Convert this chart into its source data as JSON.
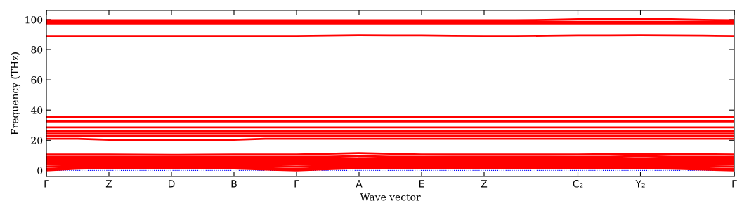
{
  "chart_data": {
    "type": "line",
    "xlabel": "Wave vector",
    "ylabel": "Frequency (THz)",
    "categories": [
      "Γ",
      null,
      "Z",
      null,
      "D",
      null,
      "B",
      null,
      "Γ",
      null,
      "A",
      null,
      "E",
      null,
      "Z",
      null,
      null,
      "C₂",
      null,
      "Y₂",
      null,
      null,
      "Γ"
    ],
    "ylim": [
      -4,
      106
    ],
    "yticks": [
      0,
      20,
      40,
      60,
      80,
      100
    ],
    "marker": "none",
    "line_style": "solid",
    "ref_lines": [
      {
        "axis": "y",
        "value": 0,
        "color": "#0000ff",
        "line_style": "dotted"
      }
    ],
    "series": [
      {
        "color": "#ff0000",
        "values": [
          0,
          1.2,
          1.5,
          1.5,
          1.5,
          1.5,
          1.3,
          0.6,
          0,
          0.8,
          1.5,
          1.5,
          1.5,
          1.5,
          1.5,
          1.5,
          1.5,
          1.5,
          1.5,
          1.5,
          1.2,
          0.6,
          0
        ]
      },
      {
        "color": "#ff0000",
        "values": [
          1,
          2,
          2,
          2,
          2,
          2,
          2,
          1.5,
          1,
          1.8,
          2,
          2,
          2,
          2,
          2,
          2,
          2,
          2,
          2,
          2,
          2,
          1.5,
          1
        ]
      },
      {
        "color": "#ff0000",
        "values": [
          2.5,
          3,
          3,
          3,
          3,
          3,
          3,
          3,
          2.5,
          3,
          3,
          3,
          3,
          3,
          3,
          3,
          3,
          3,
          3,
          3,
          3,
          3,
          2.5
        ]
      },
      {
        "color": "#ff0000",
        "values": [
          4,
          4,
          4,
          4,
          4,
          4,
          4,
          4,
          4,
          4,
          4,
          4,
          4,
          4,
          4,
          4,
          4,
          4,
          4,
          4,
          4,
          4,
          4
        ]
      },
      {
        "color": "#ff0000",
        "values": [
          5,
          5,
          5,
          5,
          5,
          5,
          5,
          5,
          5,
          5,
          5,
          5,
          5,
          5,
          5,
          5,
          5,
          5,
          5,
          5,
          5,
          5,
          5
        ]
      },
      {
        "color": "#ff0000",
        "values": [
          6,
          6,
          6,
          6,
          6,
          6,
          6,
          6,
          6,
          6,
          6,
          6,
          6,
          6,
          6,
          6,
          6,
          6,
          6,
          6,
          6,
          6,
          6
        ]
      },
      {
        "color": "#ff0000",
        "values": [
          7,
          7,
          7,
          7,
          7,
          7,
          7,
          7,
          7,
          7,
          7,
          7,
          7,
          7,
          7,
          7,
          7,
          7,
          7,
          7,
          7,
          7,
          7
        ]
      },
      {
        "color": "#ff0000",
        "values": [
          8,
          8,
          8,
          8,
          8,
          8,
          8,
          8,
          8,
          8,
          8,
          8,
          8,
          8,
          8,
          8,
          8,
          8,
          8,
          8,
          8,
          8,
          8
        ]
      },
      {
        "color": "#ff0000",
        "values": [
          9,
          9,
          9,
          9,
          9,
          9,
          9,
          9,
          9,
          9,
          9.5,
          9,
          9,
          9,
          9,
          9,
          9,
          9,
          9,
          9.5,
          9,
          9,
          9
        ]
      },
      {
        "color": "#ff0000",
        "values": [
          10.5,
          10.5,
          10.5,
          10.4,
          10.3,
          10.4,
          10.6,
          10.6,
          10.6,
          11,
          11.5,
          11,
          10.6,
          10.5,
          10.5,
          10.5,
          10.5,
          10.6,
          10.8,
          11,
          10.9,
          10.8,
          10.5
        ]
      },
      {
        "color": "#ff0000",
        "values": [
          21,
          21,
          20.3,
          20.3,
          20.3,
          20.3,
          20.3,
          21,
          21,
          21,
          21,
          21,
          21,
          21,
          21,
          21,
          21,
          21,
          21,
          21,
          21,
          21,
          21
        ]
      },
      {
        "color": "#ff0000",
        "values": [
          23,
          23,
          23,
          23,
          23,
          23,
          23,
          23,
          23,
          23,
          23,
          23,
          23,
          23,
          23,
          23,
          23,
          23,
          23,
          23,
          23,
          23,
          23
        ]
      },
      {
        "color": "#ff0000",
        "values": [
          24.5,
          24.5,
          24.5,
          24.5,
          24.5,
          24.5,
          24.5,
          24.5,
          24.5,
          24.5,
          24.5,
          24.5,
          24.5,
          24.5,
          24.5,
          24.5,
          24.5,
          24.5,
          24.5,
          24.5,
          24.5,
          24.5,
          24.5
        ]
      },
      {
        "color": "#ff0000",
        "values": [
          26,
          26,
          26,
          26,
          26,
          26,
          26,
          26,
          26,
          26,
          26,
          26,
          26,
          26,
          26,
          26,
          26,
          26,
          26,
          26,
          26,
          26,
          26
        ]
      },
      {
        "color": "#ff0000",
        "values": [
          28.5,
          28.5,
          28.5,
          28.5,
          28.5,
          28.5,
          28.5,
          28.5,
          28.5,
          28.5,
          28.5,
          28.5,
          28.5,
          28.5,
          28.5,
          28.5,
          28.5,
          28.5,
          28.5,
          28.5,
          28.5,
          28.5,
          28.5
        ]
      },
      {
        "color": "#ff0000",
        "values": [
          32.5,
          32.5,
          32.5,
          32.5,
          32.5,
          32.5,
          32.5,
          32.5,
          32.5,
          32.5,
          32.5,
          32.5,
          32.5,
          32.5,
          32.5,
          32.5,
          32.5,
          32.5,
          32.5,
          32.5,
          32.5,
          32.5,
          32.5
        ]
      },
      {
        "color": "#ff0000",
        "values": [
          35.5,
          35.5,
          35.5,
          35.5,
          35.5,
          35.5,
          35.5,
          35.5,
          35.5,
          35.5,
          35.5,
          35.5,
          35.5,
          35.5,
          35.5,
          35.5,
          35.5,
          35.5,
          35.5,
          35.5,
          35.5,
          35.5,
          35.5
        ]
      },
      {
        "color": "#ff0000",
        "values": [
          89,
          89,
          89,
          89,
          89,
          89,
          89,
          89,
          89,
          89.2,
          89.5,
          89.4,
          89.3,
          89.1,
          89,
          89,
          89.1,
          89.3,
          89.4,
          89.5,
          89.3,
          89.2,
          89
        ]
      },
      {
        "color": "#ff0000",
        "values": [
          97.5,
          97.5,
          97.5,
          97.5,
          97.5,
          97.5,
          97.5,
          97.5,
          97.5,
          97.5,
          97.5,
          97.5,
          97.5,
          97.5,
          97.5,
          97.5,
          97.5,
          97.5,
          97.5,
          97.5,
          97.5,
          97.5,
          97.5
        ]
      },
      {
        "color": "#ff0000",
        "values": [
          98.5,
          98.5,
          98.5,
          98.5,
          98.5,
          98.5,
          98.5,
          98.5,
          98.5,
          98.5,
          98.5,
          98.5,
          98.5,
          98.5,
          98.5,
          98.5,
          98.5,
          98.5,
          98.5,
          98.5,
          98.5,
          98.5,
          98.5
        ]
      },
      {
        "color": "#ff0000",
        "values": [
          99.5,
          99.5,
          99.5,
          99.5,
          99.5,
          99.5,
          99.5,
          99.5,
          99.5,
          99.5,
          99.5,
          99.5,
          99.5,
          99.5,
          99.5,
          99.5,
          99.8,
          100.2,
          100.5,
          100.5,
          100.2,
          99.8,
          99.5
        ]
      }
    ]
  }
}
